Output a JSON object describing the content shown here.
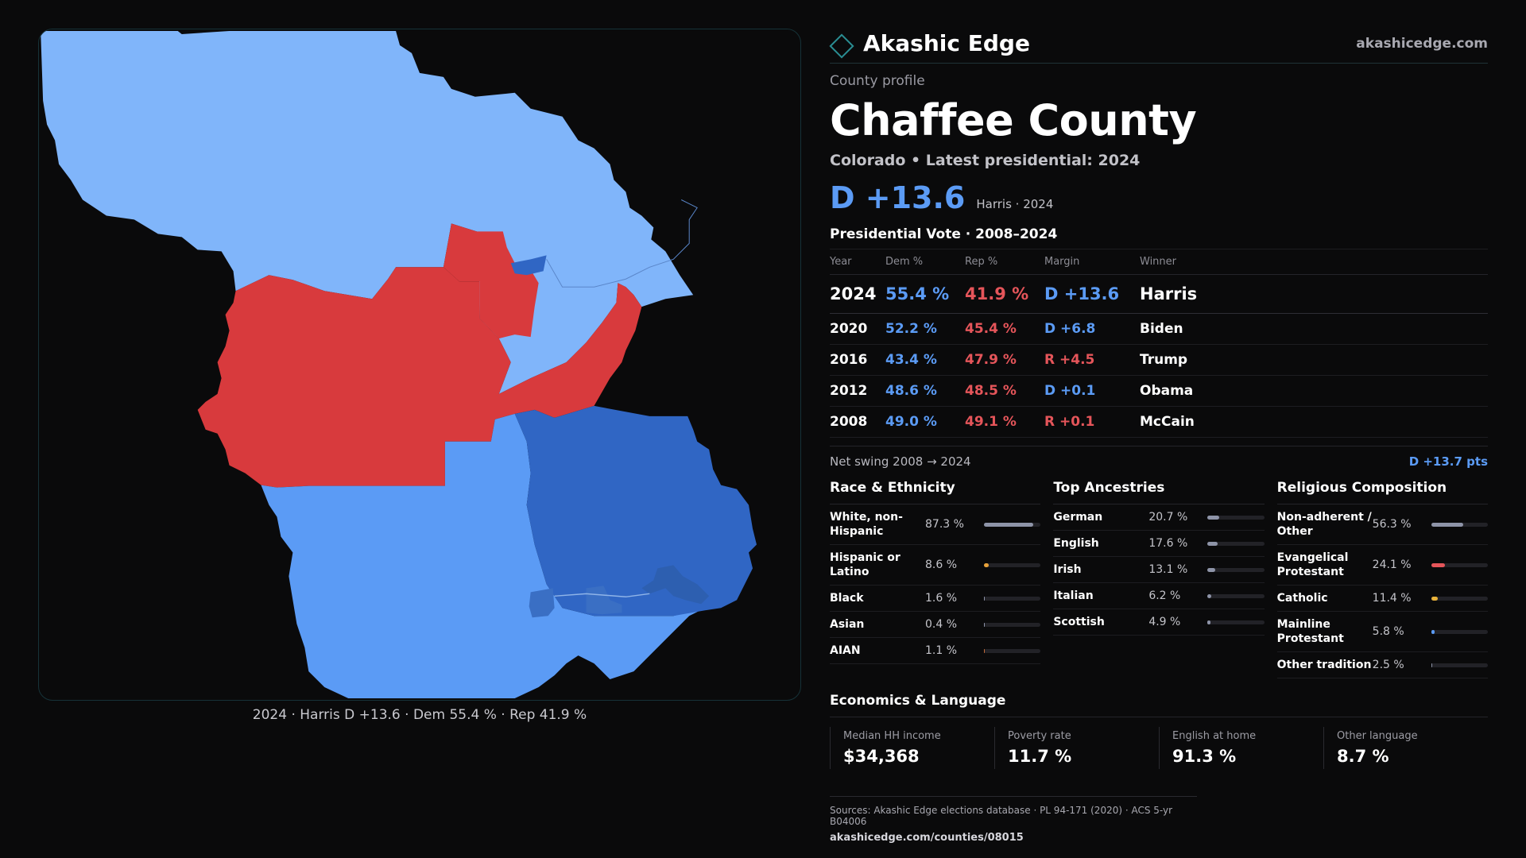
{
  "brand": {
    "name": "Akashic Edge",
    "site": "akashicedge.com"
  },
  "map": {
    "caption": "2024 · Harris D +13.6 · Dem 55.4 % · Rep 41.9 %",
    "colors": {
      "lean_dem": "#80b5fa",
      "dem": "#5b9bf5",
      "strong_dem": "#3066c4",
      "rep": "#d83a3d",
      "urban_dem": "#2d5fb0"
    }
  },
  "profile": {
    "eyebrow": "County profile",
    "title": "Chaffee County",
    "subline": "Colorado • Latest presidential: 2024",
    "headline_margin": "D +13.6",
    "headline_note": "Harris · 2024"
  },
  "votes": {
    "title": "Presidential Vote · 2008–2024",
    "headers": [
      "Year",
      "Dem %",
      "Rep %",
      "Margin",
      "Winner"
    ],
    "rows": [
      {
        "year": "2024",
        "dem": "55.4 %",
        "rep": "41.9 %",
        "margin": "D +13.6",
        "party": "d",
        "winner": "Harris"
      },
      {
        "year": "2020",
        "dem": "52.2 %",
        "rep": "45.4 %",
        "margin": "D +6.8",
        "party": "d",
        "winner": "Biden"
      },
      {
        "year": "2016",
        "dem": "43.4 %",
        "rep": "47.9 %",
        "margin": "R +4.5",
        "party": "r",
        "winner": "Trump"
      },
      {
        "year": "2012",
        "dem": "48.6 %",
        "rep": "48.5 %",
        "margin": "D +0.1",
        "party": "d",
        "winner": "Obama"
      },
      {
        "year": "2008",
        "dem": "49.0 %",
        "rep": "49.1 %",
        "margin": "R +0.1",
        "party": "r",
        "winner": "McCain"
      }
    ],
    "swing_label": "Net swing 2008 → 2024",
    "swing_value": "D +13.7 pts"
  },
  "race": {
    "title": "Race & Ethnicity",
    "items": [
      {
        "label": "White, non-Hispanic",
        "value": "87.3 %",
        "pct": 87.3,
        "color": "#8e94a8"
      },
      {
        "label": "Hispanic or Latino",
        "value": "8.6 %",
        "pct": 8.6,
        "color": "#e8a23a"
      },
      {
        "label": "Black",
        "value": "1.6 %",
        "pct": 1.6,
        "color": "#8e94a8"
      },
      {
        "label": "Asian",
        "value": "0.4 %",
        "pct": 0.4,
        "color": "#8e94a8"
      },
      {
        "label": "AIAN",
        "value": "1.1 %",
        "pct": 1.1,
        "color": "#c26a3a"
      }
    ]
  },
  "ancestry": {
    "title": "Top Ancestries",
    "items": [
      {
        "label": "German",
        "value": "20.7 %",
        "pct": 20.7,
        "color": "#8e94a8"
      },
      {
        "label": "English",
        "value": "17.6 %",
        "pct": 17.6,
        "color": "#8e94a8"
      },
      {
        "label": "Irish",
        "value": "13.1 %",
        "pct": 13.1,
        "color": "#8e94a8"
      },
      {
        "label": "Italian",
        "value": "6.2 %",
        "pct": 6.2,
        "color": "#8e94a8"
      },
      {
        "label": "Scottish",
        "value": "4.9 %",
        "pct": 4.9,
        "color": "#8e94a8"
      }
    ]
  },
  "religion": {
    "title": "Religious Composition",
    "items": [
      {
        "label": "Non-adherent / Other",
        "value": "56.3 %",
        "pct": 56.3,
        "color": "#8e94a8"
      },
      {
        "label": "Evangelical Protestant",
        "value": "24.1 %",
        "pct": 24.1,
        "color": "#e5555a"
      },
      {
        "label": "Catholic",
        "value": "11.4 %",
        "pct": 11.4,
        "color": "#e8b23a"
      },
      {
        "label": "Mainline Protestant",
        "value": "5.8 %",
        "pct": 5.8,
        "color": "#5b9bf5"
      },
      {
        "label": "Other tradition",
        "value": "2.5 %",
        "pct": 2.5,
        "color": "#8e94a8"
      }
    ]
  },
  "economics": {
    "title": "Economics & Language",
    "items": [
      {
        "label": "Median HH income",
        "value": "$34,368"
      },
      {
        "label": "Poverty rate",
        "value": "11.7 %"
      },
      {
        "label": "English at home",
        "value": "91.3 %"
      },
      {
        "label": "Other language",
        "value": "8.7 %"
      }
    ]
  },
  "sources": {
    "line": "Sources: Akashic Edge elections database · PL 94-171 (2020) · ACS 5-yr B04006",
    "url": "akashicedge.com/counties/08015"
  }
}
